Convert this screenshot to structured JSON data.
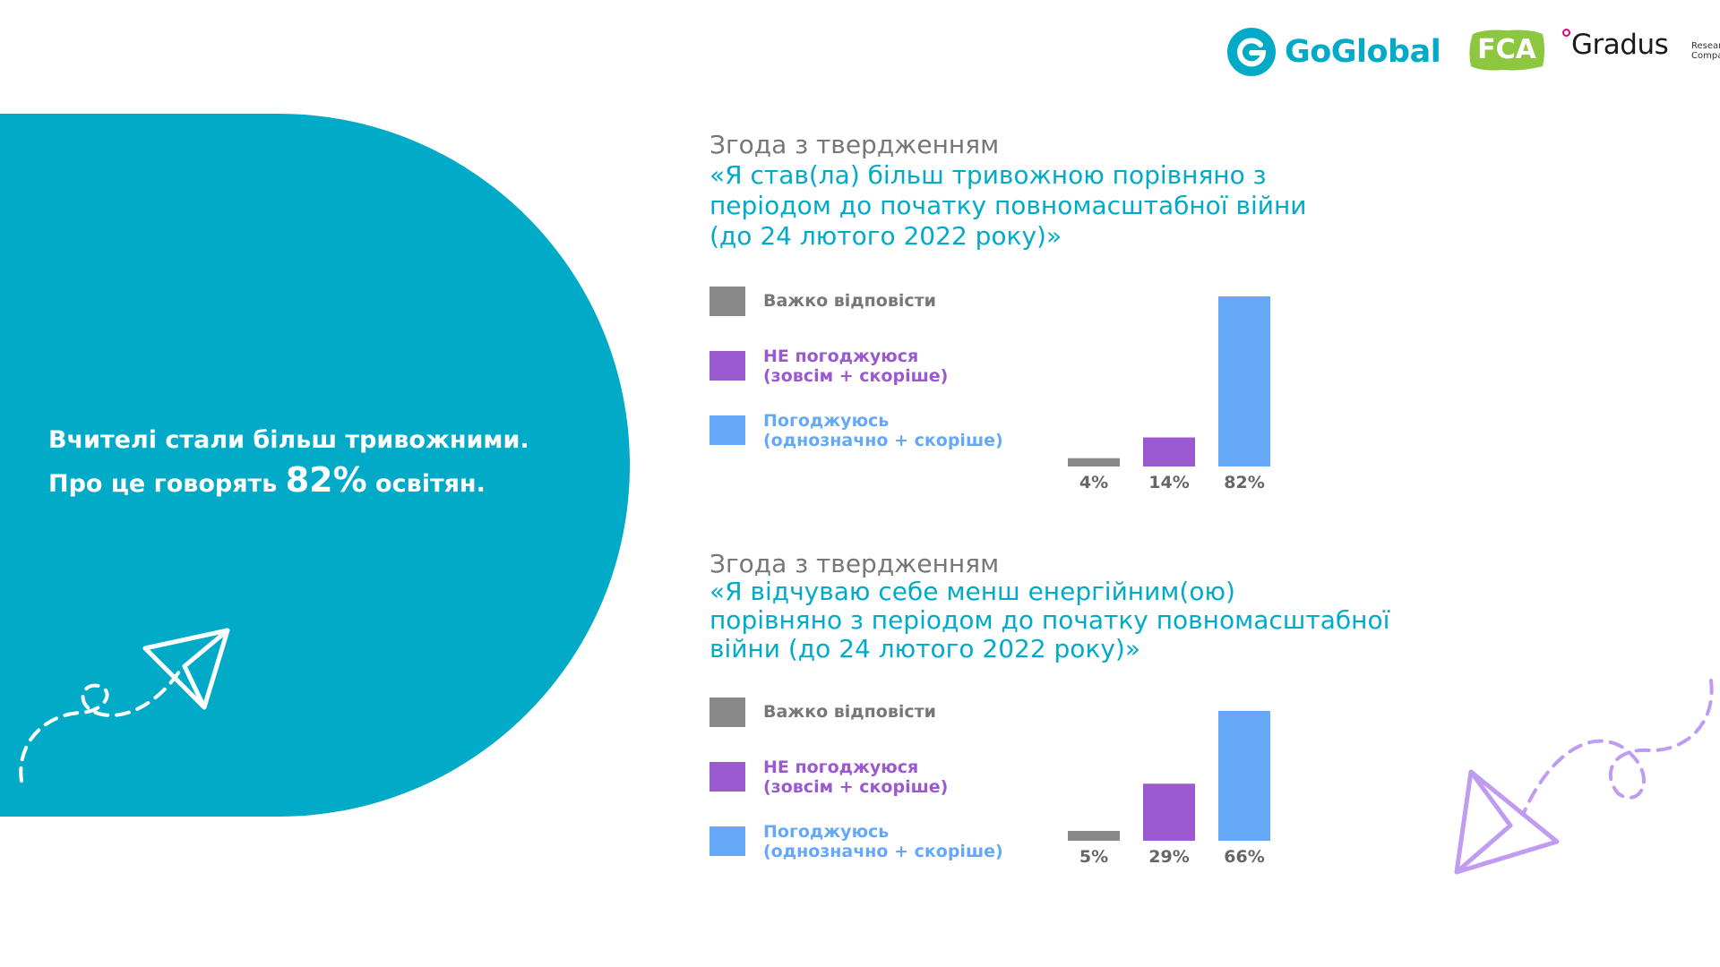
{
  "colors": {
    "teal": "#01abc8",
    "gray": "#888888",
    "purple": "#9b59d0",
    "blue": "#66a8f8",
    "lavender": "#bf9cf2",
    "logo_green": "#8dc63f",
    "logo_pink": "#e4007d"
  },
  "logos": {
    "goglobal_name": "GoGlobal",
    "goglobal_icon": "g-icon",
    "fca_name": "FCA",
    "gradus_name": "Gradus",
    "gradus_sub_1": "Research",
    "gradus_sub_2": "Company"
  },
  "headline": {
    "line1": "Вчителі стали більш тривожними.",
    "line2_prefix": "Про це говорять ",
    "line2_value": "82%",
    "line2_suffix": " освітян."
  },
  "icons": {
    "left": "paper-plane-icon",
    "right": "paper-plane-icon"
  },
  "chart_data": [
    {
      "type": "bar",
      "title_label": "Згода з твердженням",
      "title_quote_lines": [
        "«Я став(ла) більш тривожною порівняно з",
        "періодом до початку повномасштабної війни",
        "(до 24 лютого 2022 року)»"
      ],
      "legend": [
        {
          "line1": "Важко відповісти",
          "line2": "",
          "color": "#888888",
          "text_color": "#777777"
        },
        {
          "line1": "НЕ погоджуюся",
          "line2": "(зовсім + скоріше)",
          "color": "#9b59d0",
          "text_color": "#9b59d0"
        },
        {
          "line1": "Погоджуюсь",
          "line2": "(однозначно + скоріше)",
          "color": "#66a8f8",
          "text_color": "#66a8f8"
        }
      ],
      "categories": [
        "Важко відповісти",
        "НЕ погоджуюся",
        "Погоджуюсь"
      ],
      "values": [
        4,
        14,
        82
      ],
      "value_labels": [
        "4%",
        "14%",
        "82%"
      ],
      "ylim": [
        0,
        82
      ],
      "grid": false
    },
    {
      "type": "bar",
      "title_label": "Згода з твердженням",
      "title_quote_lines": [
        "«Я відчуваю себе менш енергійним(ою)",
        "порівняно з періодом до початку повномасштабної",
        "війни (до 24 лютого 2022 року)»"
      ],
      "legend": [
        {
          "line1": "Важко відповісти",
          "line2": "",
          "color": "#888888",
          "text_color": "#777777"
        },
        {
          "line1": "НЕ погоджуюся",
          "line2": "(зовсім + скоріше)",
          "color": "#9b59d0",
          "text_color": "#9b59d0"
        },
        {
          "line1": "Погоджуюсь",
          "line2": "(однозначно + скоріше)",
          "color": "#66a8f8",
          "text_color": "#66a8f8"
        }
      ],
      "categories": [
        "Важко відповісти",
        "НЕ погоджуюся",
        "Погоджуюсь"
      ],
      "values": [
        5,
        29,
        66
      ],
      "value_labels": [
        "5%",
        "29%",
        "66%"
      ],
      "ylim": [
        0,
        66
      ],
      "grid": false
    }
  ]
}
